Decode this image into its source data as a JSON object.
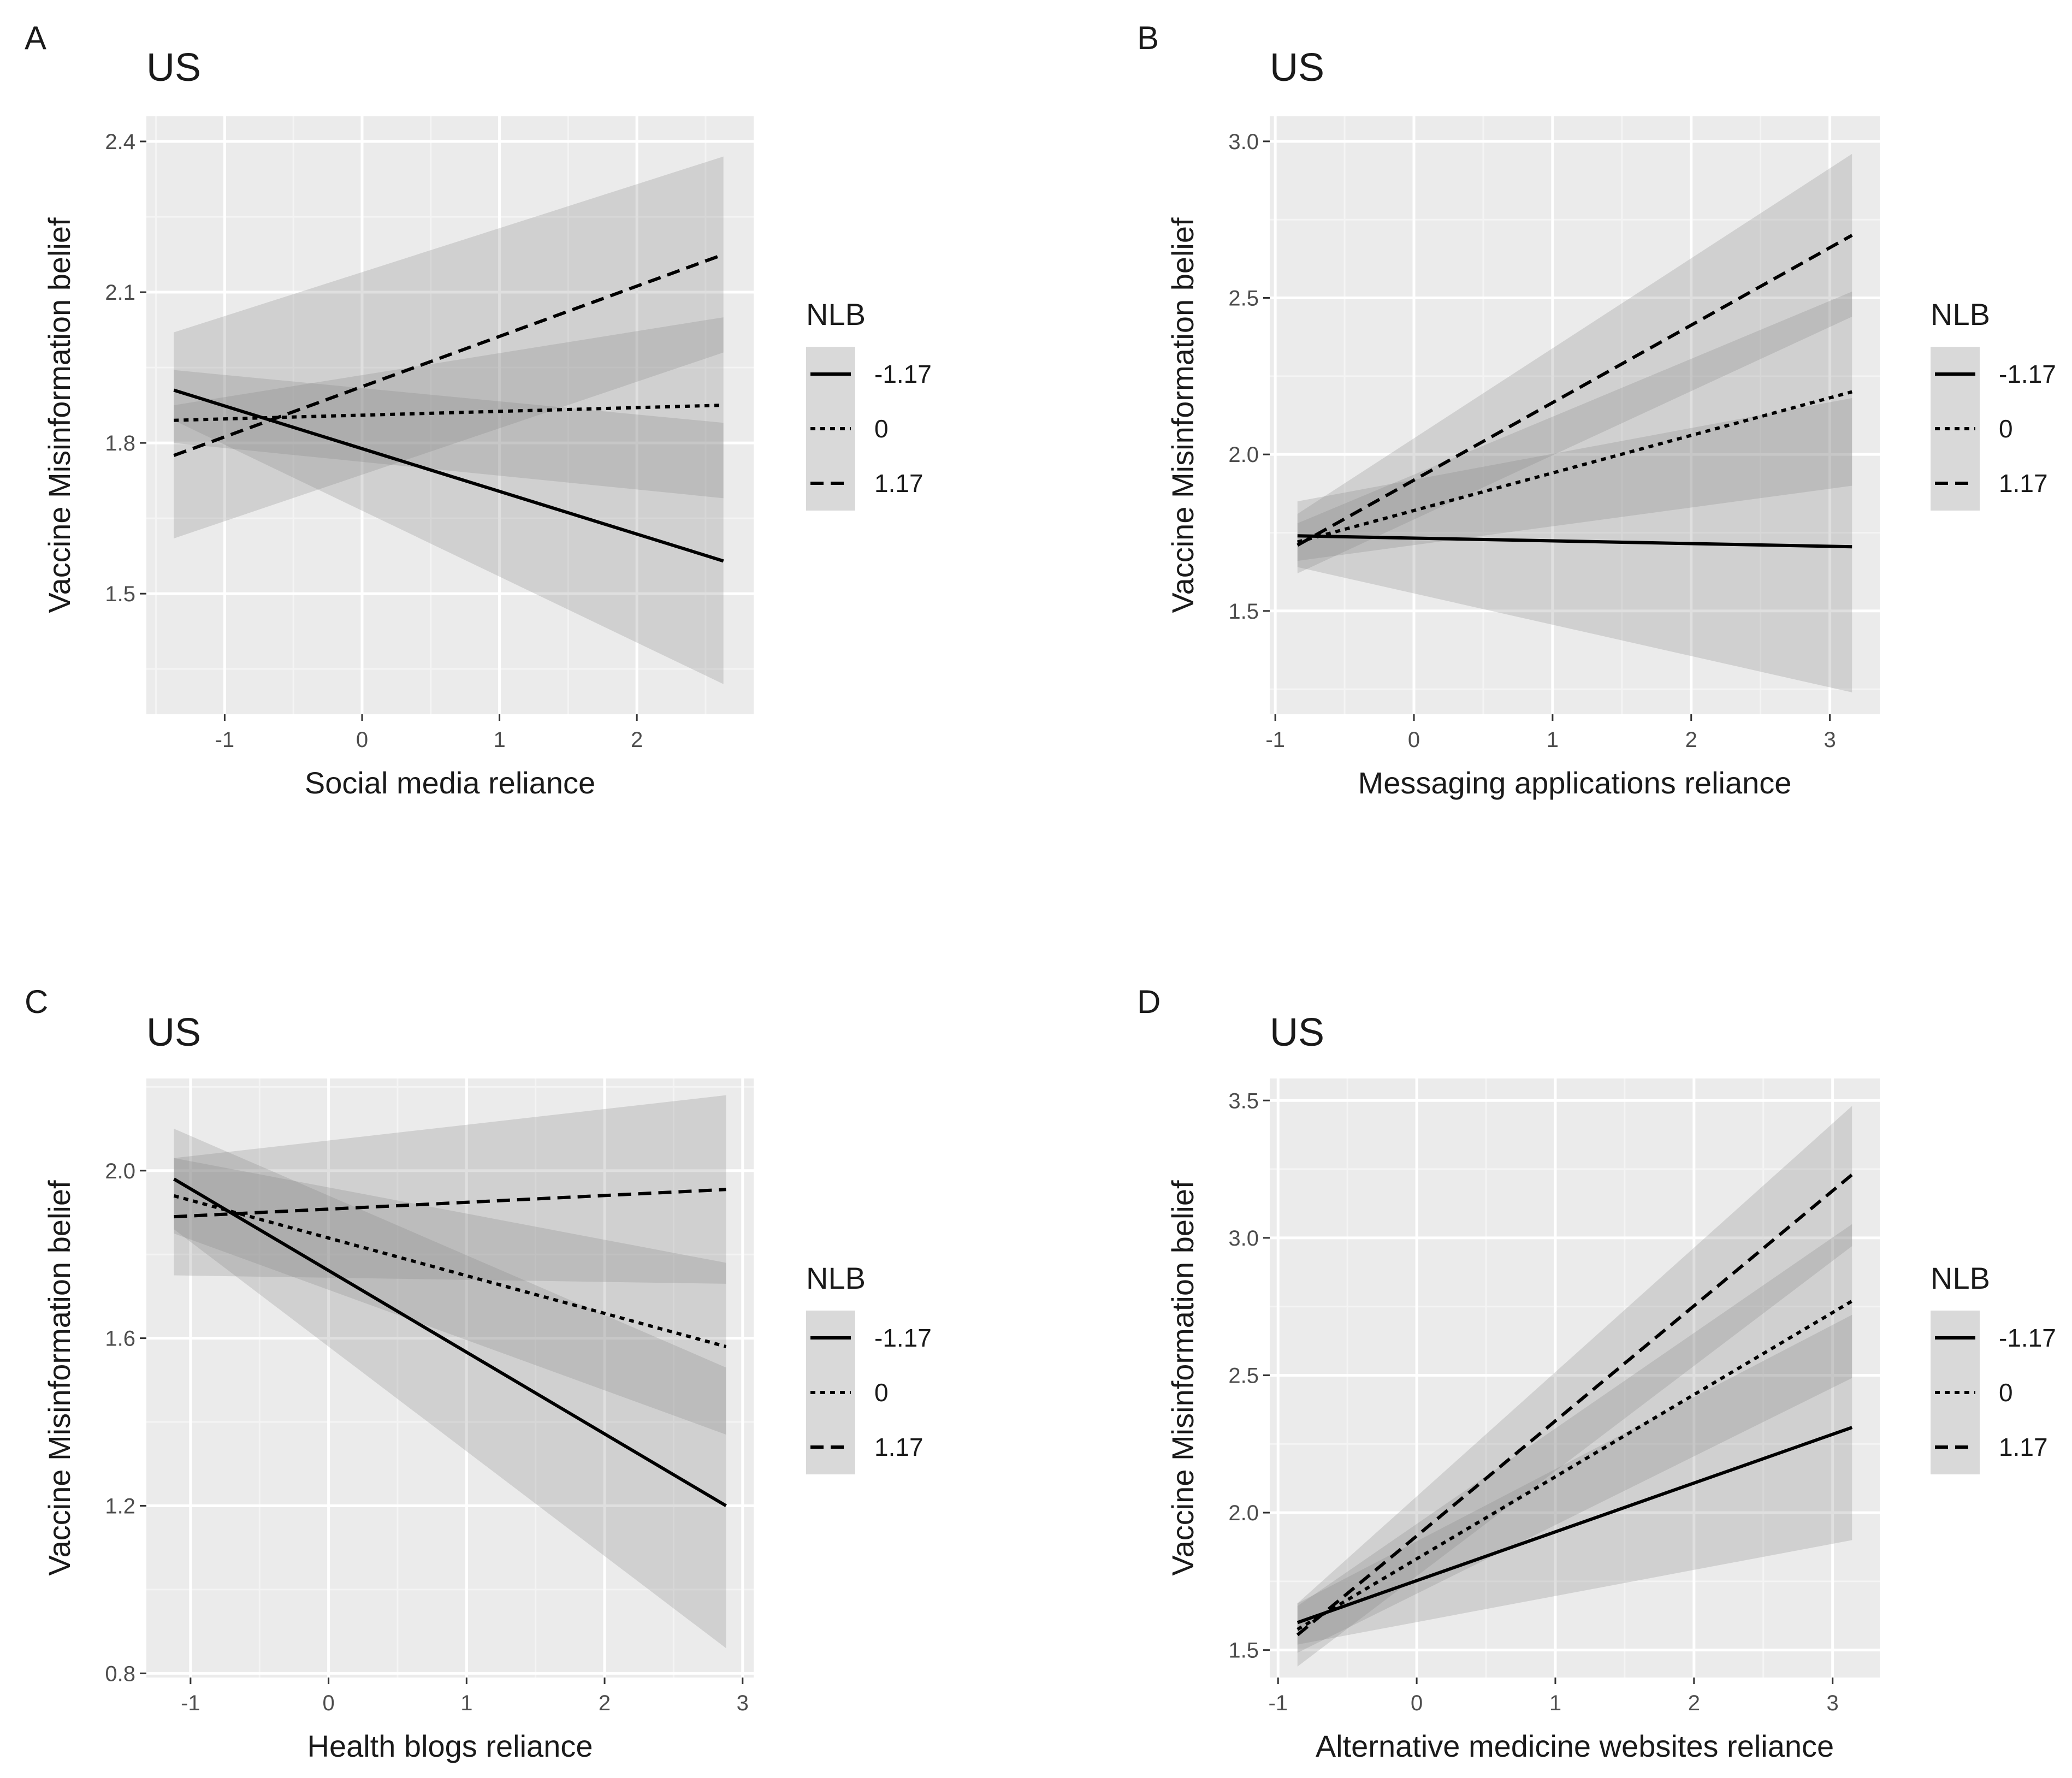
{
  "figure": {
    "legend_title": "NLB",
    "moderator_levels": [
      {
        "label": "-1.17",
        "linetype": "solid"
      },
      {
        "label": "0",
        "linetype": "dotted"
      },
      {
        "label": "1.17",
        "linetype": "dashed"
      }
    ],
    "colors": {
      "panel_bg": "#ebebeb",
      "grid_major": "#ffffff",
      "grid_minor": "#f4f4f4",
      "ribbon": "#7f7f7f",
      "line": "#000000",
      "legend_key_bg": "#d9d9d9"
    }
  },
  "chart_data": [
    {
      "panel": "A",
      "title": "US",
      "type": "line",
      "xlabel": "Social media reliance",
      "ylabel": "Vaccine Misinformation belief",
      "xlim": [
        -1.57,
        2.85
      ],
      "ylim": [
        1.26,
        2.45
      ],
      "xticks": [
        -1,
        0,
        1,
        2
      ],
      "xtick_labels": [
        "-1",
        "0",
        "1",
        "2"
      ],
      "yticks": [
        1.5,
        1.8,
        2.1,
        2.4
      ],
      "ytick_labels": [
        "1.5",
        "1.8",
        "2.1",
        "2.4"
      ],
      "x": [
        -1.37,
        2.63
      ],
      "series": [
        {
          "name": "-1.17",
          "values": [
            1.905,
            1.565
          ],
          "lower": [
            1.845,
            1.32
          ],
          "upper": [
            1.945,
            1.84
          ]
        },
        {
          "name": "0",
          "values": [
            1.845,
            1.875
          ],
          "lower": [
            1.8,
            1.69
          ],
          "upper": [
            1.875,
            2.05
          ]
        },
        {
          "name": "1.17",
          "values": [
            1.775,
            2.175
          ],
          "lower": [
            1.61,
            1.98
          ],
          "upper": [
            2.02,
            2.37
          ]
        }
      ]
    },
    {
      "panel": "B",
      "title": "US",
      "type": "line",
      "xlabel": "Messaging applications reliance",
      "ylabel": "Vaccine Misinformation belief",
      "xlim": [
        -1.04,
        3.36
      ],
      "ylim": [
        1.17,
        3.08
      ],
      "xticks": [
        -1,
        0,
        1,
        2,
        3
      ],
      "xtick_labels": [
        "-1",
        "0",
        "1",
        "2",
        "3"
      ],
      "yticks": [
        1.5,
        2.0,
        2.5,
        3.0
      ],
      "ytick_labels": [
        "1.5",
        "2.0",
        "2.5",
        "3.0"
      ],
      "x": [
        -0.84,
        3.16
      ],
      "series": [
        {
          "name": "-1.17",
          "values": [
            1.74,
            1.705
          ],
          "lower": [
            1.64,
            1.24
          ],
          "upper": [
            1.85,
            2.18
          ]
        },
        {
          "name": "0",
          "values": [
            1.72,
            2.2
          ],
          "lower": [
            1.66,
            1.9
          ],
          "upper": [
            1.78,
            2.52
          ]
        },
        {
          "name": "1.17",
          "values": [
            1.71,
            2.7
          ],
          "lower": [
            1.62,
            2.44
          ],
          "upper": [
            1.81,
            2.96
          ]
        }
      ]
    },
    {
      "panel": "C",
      "title": "US",
      "type": "line",
      "xlabel": "Health blogs reliance",
      "ylabel": "Vaccine Misinformation belief",
      "xlim": [
        -1.32,
        3.08
      ],
      "ylim": [
        0.79,
        2.22
      ],
      "xticks": [
        -1,
        0,
        1,
        2,
        3
      ],
      "xtick_labels": [
        "-1",
        "0",
        "1",
        "2",
        "3"
      ],
      "yticks": [
        0.8,
        1.2,
        1.6,
        2.0
      ],
      "ytick_labels": [
        "0.8",
        "1.2",
        "1.6",
        "2.0"
      ],
      "x": [
        -1.12,
        2.88
      ],
      "series": [
        {
          "name": "-1.17",
          "values": [
            1.98,
            1.2
          ],
          "lower": [
            1.86,
            0.86
          ],
          "upper": [
            2.1,
            1.53
          ]
        },
        {
          "name": "0",
          "values": [
            1.94,
            1.58
          ],
          "lower": [
            1.85,
            1.37
          ],
          "upper": [
            2.03,
            1.78
          ]
        },
        {
          "name": "1.17",
          "values": [
            1.89,
            1.955
          ],
          "lower": [
            1.75,
            1.73
          ],
          "upper": [
            2.03,
            2.18
          ]
        }
      ]
    },
    {
      "panel": "D",
      "title": "US",
      "type": "line",
      "xlabel": "Alternative medicine websites reliance",
      "ylabel": "Vaccine Misinformation belief",
      "xlim": [
        -1.06,
        3.34
      ],
      "ylim": [
        1.4,
        3.58
      ],
      "xticks": [
        -1,
        0,
        1,
        2,
        3
      ],
      "xtick_labels": [
        "-1",
        "0",
        "1",
        "2",
        "3"
      ],
      "yticks": [
        1.5,
        2.0,
        2.5,
        3.0,
        3.5
      ],
      "ytick_labels": [
        "1.5",
        "2.0",
        "2.5",
        "3.0",
        "3.5"
      ],
      "x": [
        -0.86,
        3.14
      ],
      "series": [
        {
          "name": "-1.17",
          "values": [
            1.6,
            2.31
          ],
          "lower": [
            1.52,
            1.9
          ],
          "upper": [
            1.67,
            2.72
          ]
        },
        {
          "name": "0",
          "values": [
            1.575,
            2.77
          ],
          "lower": [
            1.49,
            2.49
          ],
          "upper": [
            1.66,
            3.05
          ]
        },
        {
          "name": "1.17",
          "values": [
            1.555,
            3.23
          ],
          "lower": [
            1.44,
            2.97
          ],
          "upper": [
            1.67,
            3.48
          ]
        }
      ]
    }
  ]
}
